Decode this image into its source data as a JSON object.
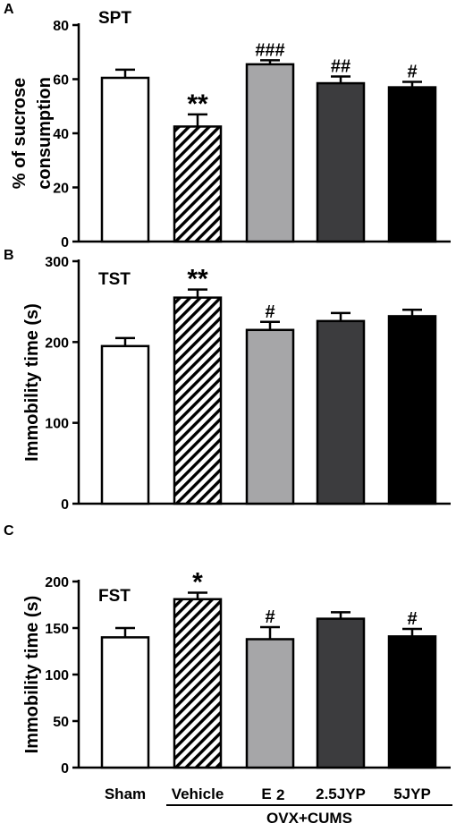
{
  "colors": {
    "Sham": "#ffffff",
    "Vehicle": "hatch",
    "E2": "#a6a6a8",
    "2.5JYP": "#3c3c3e",
    "5JYP": "#000000",
    "axis": "#000000"
  },
  "x_axis": {
    "categories": [
      "Sham",
      "Vehicle",
      "E2",
      "2.5JYP",
      "5JYP"
    ],
    "category_labels": [
      "Sham",
      "Vehicle",
      "E",
      "2.5JYP",
      "5JYP"
    ],
    "e2_subscript": "2",
    "group_label": "OVX+CUMS"
  },
  "chart_data": [
    {
      "type": "bar",
      "panel": "A",
      "title": "SPT",
      "ylabel_lines": [
        "% of sucrose",
        "consumption"
      ],
      "ylim": [
        0,
        80
      ],
      "yticks": [
        0,
        20,
        40,
        60,
        80
      ],
      "categories": [
        "Sham",
        "Vehicle",
        "E2",
        "2.5JYP",
        "5JYP"
      ],
      "values": [
        60.5,
        42.5,
        65.5,
        58.5,
        57
      ],
      "errors": [
        3,
        4.5,
        1.5,
        2.5,
        2
      ],
      "annotations": [
        "",
        "**",
        "###",
        "##",
        "#"
      ]
    },
    {
      "type": "bar",
      "panel": "B",
      "title": "TST",
      "ylabel_lines": [
        "Immobility time (s)"
      ],
      "ylim": [
        0,
        300
      ],
      "yticks": [
        0,
        100,
        200,
        300
      ],
      "categories": [
        "Sham",
        "Vehicle",
        "E2",
        "2.5JYP",
        "5JYP"
      ],
      "values": [
        195,
        255,
        215,
        226,
        232
      ],
      "errors": [
        10,
        10,
        10,
        10,
        8
      ],
      "annotations": [
        "",
        "**",
        "#",
        "",
        ""
      ]
    },
    {
      "type": "bar",
      "panel": "C",
      "title": "FST",
      "ylabel_lines": [
        "Immobility time (s)"
      ],
      "ylim": [
        0,
        200
      ],
      "yticks": [
        0,
        50,
        100,
        150,
        200
      ],
      "categories": [
        "Sham",
        "Vehicle",
        "E2",
        "2.5JYP",
        "5JYP"
      ],
      "values": [
        140,
        181,
        138,
        160,
        141
      ],
      "errors": [
        10,
        7,
        13,
        7,
        8
      ],
      "annotations": [
        "",
        "*",
        "#",
        "",
        "#"
      ]
    }
  ]
}
